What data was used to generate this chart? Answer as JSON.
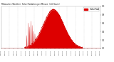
{
  "title": "Milwaukee Weather Solar Radiation per Minute (24 Hours)",
  "background_color": "#ffffff",
  "plot_bg_color": "#ffffff",
  "line_color": "#cc0000",
  "fill_color": "#dd0000",
  "legend_label": "Solar Rad",
  "legend_color": "#dd0000",
  "ylim": [
    0,
    1
  ],
  "xlim": [
    0,
    1440
  ],
  "grid_color": "#bbbbbb",
  "num_minutes": 1440,
  "peak_minute": 760,
  "peak_value": 0.92,
  "sunrise_minute": 340,
  "sunset_minute": 1180,
  "early_spikes": [
    370,
    390,
    410,
    430,
    450,
    470,
    490
  ],
  "early_spike_heights": [
    0.3,
    0.6,
    0.5,
    0.65,
    0.55,
    0.4,
    0.35
  ],
  "ytick_values": [
    0.0,
    0.2,
    0.4,
    0.6,
    0.8,
    1.0
  ],
  "grid_interval_minutes": 120,
  "xtick_interval_minutes": 60
}
